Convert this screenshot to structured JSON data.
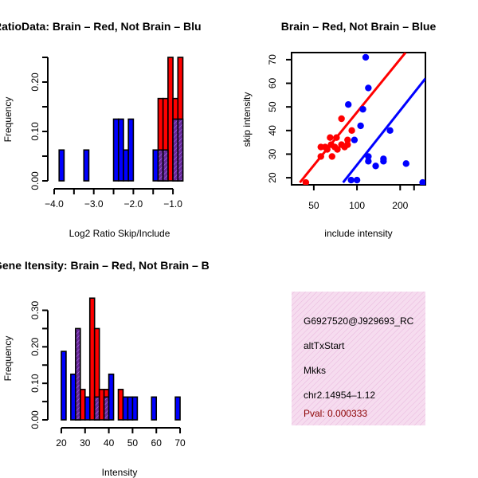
{
  "chart_data": [
    {
      "type": "bar",
      "title": "RatioData: Brain – Red, Not Brain – Blu",
      "xlabel": "Log2 Ratio Skip/Include",
      "ylabel": "Frequency",
      "xlim": [
        -4.0,
        -0.7
      ],
      "ylim": [
        0,
        0.25
      ],
      "xticks": [
        -4.0,
        -3.5,
        -3.0,
        -2.5,
        -2.0,
        -1.5,
        -1.0
      ],
      "xtick_labels": [
        "−4.0",
        "",
        "−3.0",
        "",
        "−2.0",
        "",
        "−1.0"
      ],
      "yticks": [
        0.0,
        0.05,
        0.1,
        0.15,
        0.2,
        0.25
      ],
      "ytick_labels": [
        "0.00",
        "",
        "0.10",
        "",
        "0.20",
        ""
      ],
      "bin_width": 0.125,
      "series": [
        {
          "name": "Not Brain",
          "color": "#0000ff",
          "bins": [
            [
              -3.875,
              0.0625
            ],
            [
              -3.25,
              0.0625
            ],
            [
              -2.5,
              0.125
            ],
            [
              -2.375,
              0.125
            ],
            [
              -2.25,
              0.0625
            ],
            [
              -2.125,
              0.125
            ],
            [
              -1.5,
              0.0625
            ],
            [
              -1.375,
              0.0625
            ],
            [
              -1.25,
              0.0625
            ],
            [
              -1.0,
              0.125
            ],
            [
              -0.875,
              0.125
            ]
          ]
        },
        {
          "name": "Brain",
          "color": "#ff0000",
          "bins": [
            [
              -1.375,
              0.1667
            ],
            [
              -1.25,
              0.1667
            ],
            [
              -1.125,
              0.25
            ],
            [
              -1.0,
              0.1667
            ],
            [
              -0.875,
              0.25
            ]
          ]
        }
      ]
    },
    {
      "type": "scatter",
      "title": "Brain – Red, Not Brain – Blue",
      "xlabel": "include intensity",
      "ylabel": "skip intensity",
      "xlim": [
        35,
        300
      ],
      "ylim": [
        17,
        73
      ],
      "xticks": [
        50,
        100,
        200
      ],
      "xtick_labels": [
        "50",
        "100",
        "200"
      ],
      "extra_xticks": [
        250
      ],
      "yticks": [
        20,
        30,
        40,
        50,
        60,
        70
      ],
      "ytick_labels": [
        "20",
        "30",
        "40",
        "50",
        "60",
        "70"
      ],
      "series": [
        {
          "name": "Brain",
          "color": "#ff0000",
          "points": [
            [
              65,
              37
            ],
            [
              72,
              37
            ],
            [
              66,
              34
            ],
            [
              70,
              33
            ],
            [
              78,
              34
            ],
            [
              86,
              34
            ],
            [
              62,
              32
            ],
            [
              73,
              32
            ],
            [
              67,
              29
            ],
            [
              60,
              33
            ],
            [
              56,
              33
            ],
            [
              78,
              45
            ],
            [
              86,
              36
            ],
            [
              92,
              40
            ],
            [
              82,
              33
            ],
            [
              44,
              18
            ],
            [
              56,
              29
            ]
          ],
          "fit_line": [
            [
              40,
              18
            ],
            [
              218,
              73
            ]
          ]
        },
        {
          "name": "Not Brain",
          "color": "#0000ff",
          "points": [
            [
              115,
              71
            ],
            [
              120,
              58
            ],
            [
              110,
              49
            ],
            [
              87,
              51
            ],
            [
              106,
              42
            ],
            [
              96,
              36
            ],
            [
              170,
              40
            ],
            [
              120,
              29
            ],
            [
              153,
              28
            ],
            [
              120,
              27
            ],
            [
              153,
              27
            ],
            [
              135,
              25
            ],
            [
              220,
              26
            ],
            [
              287,
              18
            ],
            [
              91,
              19
            ],
            [
              100,
              19
            ]
          ],
          "fit_line": [
            [
              80,
              18
            ],
            [
              300,
              62
            ]
          ]
        }
      ]
    },
    {
      "type": "bar",
      "title": "Gene Itensity: Brain – Red, Not Brain – B",
      "xlabel": "Intensity",
      "ylabel": "Frequency",
      "xlim": [
        18,
        72
      ],
      "ylim": [
        0,
        0.36
      ],
      "xticks": [
        20,
        30,
        40,
        50,
        60,
        70
      ],
      "xtick_labels": [
        "20",
        "30",
        "40",
        "50",
        "60",
        "70"
      ],
      "yticks": [
        0.0,
        0.05,
        0.1,
        0.15,
        0.2,
        0.25,
        0.3
      ],
      "ytick_labels": [
        "0.00",
        "",
        "0.10",
        "",
        "0.20",
        "",
        "0.30"
      ],
      "bin_width": 2,
      "series": [
        {
          "name": "Not Brain",
          "color": "#0000ff",
          "bins": [
            [
              20,
              0.1875
            ],
            [
              24,
              0.125
            ],
            [
              26,
              0.25
            ],
            [
              30,
              0.0625
            ],
            [
              34,
              0.0625
            ],
            [
              38,
              0.0625
            ],
            [
              40,
              0.125
            ],
            [
              46,
              0.0625
            ],
            [
              48,
              0.0625
            ],
            [
              50,
              0.0625
            ],
            [
              58,
              0.0625
            ],
            [
              68,
              0.0625
            ]
          ]
        },
        {
          "name": "Brain",
          "color": "#ff0000",
          "bins": [
            [
              26,
              0.0833
            ],
            [
              28,
              0.0833
            ],
            [
              32,
              0.3333
            ],
            [
              34,
              0.25
            ],
            [
              36,
              0.0833
            ],
            [
              38,
              0.0833
            ],
            [
              44,
              0.0833
            ]
          ]
        }
      ]
    }
  ],
  "info_box": {
    "lines": [
      "G6927520@J929693_RC",
      "altTxStart",
      "Mkks",
      "chr2.14954–1.12"
    ],
    "pval": "Pval: 0.000333"
  }
}
